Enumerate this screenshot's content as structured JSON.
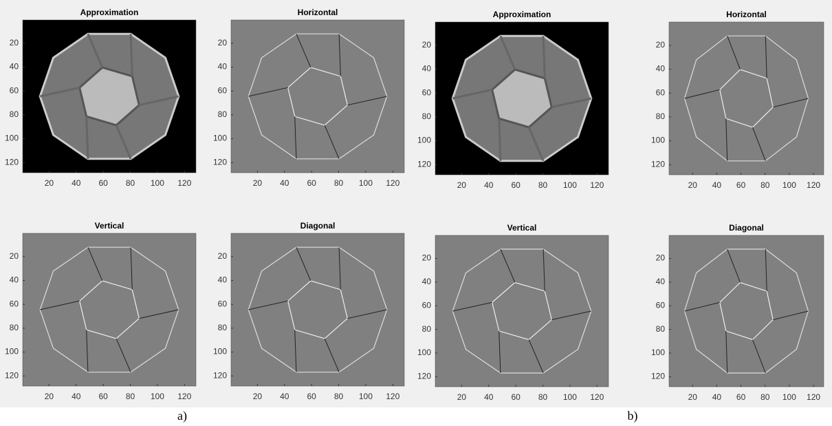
{
  "figure": {
    "panels": [
      {
        "title": "Approximation",
        "xticks": [
          20,
          40,
          60,
          80,
          100,
          120
        ],
        "yticks": [
          20,
          40,
          60,
          80,
          100,
          120
        ]
      },
      {
        "title": "Horizontal",
        "xticks": [
          20,
          40,
          60,
          80,
          100,
          120
        ],
        "yticks": [
          20,
          40,
          60,
          80,
          100,
          120
        ]
      },
      {
        "title": "Approximation",
        "xticks": [
          20,
          40,
          60,
          80,
          100,
          120
        ],
        "yticks": [
          20,
          40,
          60,
          80,
          100,
          120
        ]
      },
      {
        "title": "Horizontal",
        "xticks": [
          20,
          40,
          60,
          80,
          100,
          120
        ],
        "yticks": [
          20,
          40,
          60,
          80,
          100,
          120
        ]
      },
      {
        "title": "Vertical",
        "xticks": [
          20,
          40,
          60,
          80,
          100,
          120
        ],
        "yticks": [
          20,
          40,
          60,
          80,
          100,
          120
        ]
      },
      {
        "title": "Diagonal",
        "xticks": [
          20,
          40,
          60,
          80,
          100,
          120
        ],
        "yticks": [
          20,
          40,
          60,
          80,
          100,
          120
        ]
      },
      {
        "title": "Vertical",
        "xticks": [
          20,
          40,
          60,
          80,
          100,
          120
        ],
        "yticks": [
          20,
          40,
          60,
          80,
          100,
          120
        ]
      },
      {
        "title": "Diagonal",
        "xticks": [
          20,
          40,
          60,
          80,
          100,
          120
        ],
        "yticks": [
          20,
          40,
          60,
          80,
          100,
          120
        ]
      }
    ],
    "captions": [
      "a)",
      "b)"
    ]
  }
}
